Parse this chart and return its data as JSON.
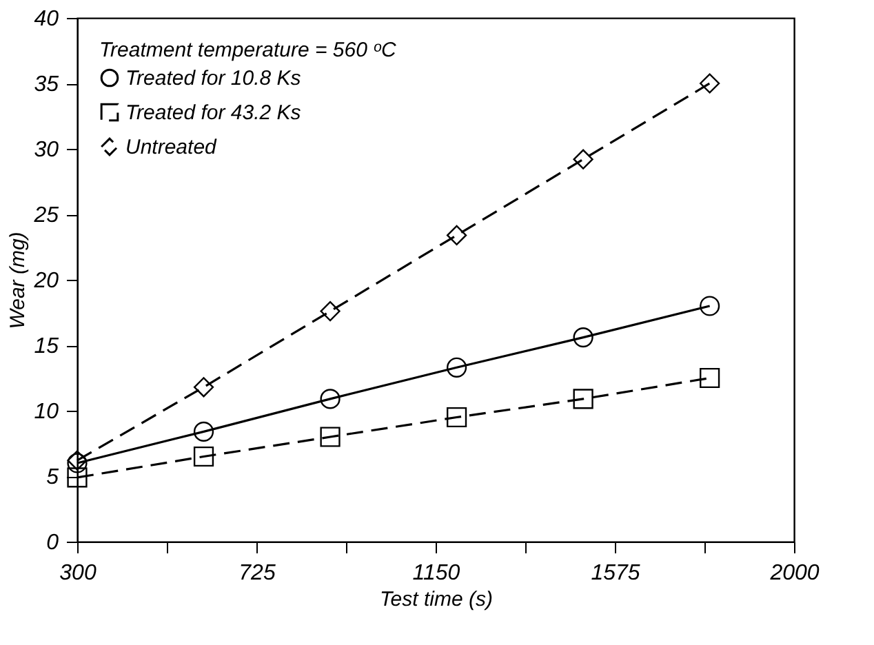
{
  "chart_data": {
    "type": "line",
    "xlabel": "Test time (s)",
    "ylabel": "Wear (mg)",
    "legend_title": "Treatment temperature = 560 ᵒC",
    "x": [
      300,
      600,
      900,
      1200,
      1500,
      1800
    ],
    "series": [
      {
        "name": "Treated for 10.8 Ks",
        "color": "#000000",
        "marker": "circle",
        "line_style": "solid",
        "values": [
          6.0,
          8.4,
          10.9,
          13.3,
          15.6,
          18.0
        ]
      },
      {
        "name": "Treated for 43.2 Ks",
        "color": "#000000",
        "marker": "square",
        "line_style": "dashed",
        "values": [
          4.9,
          6.5,
          8.0,
          9.5,
          10.9,
          12.5
        ]
      },
      {
        "name": "Untreated",
        "color": "#000000",
        "marker": "diamond",
        "line_style": "dashed",
        "values": [
          6.2,
          11.8,
          17.6,
          23.4,
          29.2,
          35.0
        ]
      }
    ],
    "xlim": [
      300,
      2000
    ],
    "xticks": [
      300,
      {
        "value": 512.5,
        "label": null
      },
      725,
      {
        "value": 937.5,
        "label": null
      },
      1150,
      {
        "value": 1362.5,
        "label": null
      },
      1575,
      {
        "value": 1787.5,
        "label": null
      },
      2000
    ],
    "ylim": [
      0,
      40
    ],
    "yticks": [
      0,
      5,
      10,
      15,
      20,
      25,
      30,
      35,
      40
    ],
    "grid": false,
    "legend": "top left"
  }
}
